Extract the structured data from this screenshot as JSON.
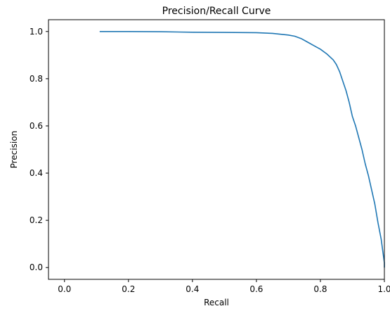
{
  "chart_data": {
    "type": "line",
    "title": "Precision/Recall Curve",
    "xlabel": "Recall",
    "ylabel": "Precision",
    "xlim": [
      -0.05,
      1.0
    ],
    "ylim": [
      -0.05,
      1.05
    ],
    "xticks": [
      0.0,
      0.2,
      0.4,
      0.6,
      0.8,
      1.0
    ],
    "yticks": [
      0.0,
      0.2,
      0.4,
      0.6,
      0.8,
      1.0
    ],
    "xtick_labels": [
      "0.0",
      "0.2",
      "0.4",
      "0.6",
      "0.8",
      "1.0"
    ],
    "ytick_labels": [
      "0.0",
      "0.2",
      "0.4",
      "0.6",
      "0.8",
      "1.0"
    ],
    "grid": false,
    "series": [
      {
        "color": "#1f77b4",
        "x": [
          0.11,
          0.2,
          0.3,
          0.4,
          0.5,
          0.6,
          0.65,
          0.7,
          0.72,
          0.74,
          0.76,
          0.78,
          0.8,
          0.82,
          0.84,
          0.85,
          0.86,
          0.87,
          0.88,
          0.89,
          0.9,
          0.91,
          0.92,
          0.93,
          0.94,
          0.95,
          0.96,
          0.97,
          0.98,
          0.99,
          0.995,
          1.0,
          1.0
        ],
        "y": [
          1.0,
          1.0,
          0.999,
          0.997,
          0.996,
          0.995,
          0.992,
          0.985,
          0.98,
          0.97,
          0.955,
          0.94,
          0.925,
          0.905,
          0.88,
          0.86,
          0.83,
          0.79,
          0.75,
          0.7,
          0.64,
          0.6,
          0.55,
          0.5,
          0.44,
          0.39,
          0.33,
          0.27,
          0.19,
          0.12,
          0.07,
          0.02,
          0.0
        ]
      }
    ]
  }
}
